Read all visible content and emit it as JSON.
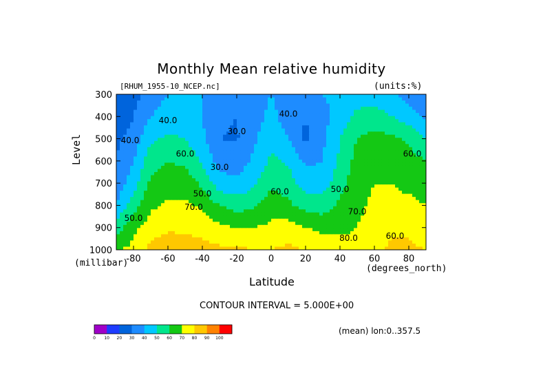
{
  "chart_data": {
    "type": "heatmap",
    "title": "Monthly Mean relative humidity",
    "dataset_label": "[RHUM_1955-10_NCEP.nc]",
    "units_label": "(units:%)",
    "xlabel": "Latitude",
    "x_units": "(degrees_north)",
    "ylabel": "Level",
    "y_units": "(millibar)",
    "xlim": [
      -90,
      90
    ],
    "ylim": [
      1000,
      300
    ],
    "x_ticks": [
      "-80",
      "-60",
      "-40",
      "-20",
      "0",
      "20",
      "40",
      "60",
      "80"
    ],
    "y_ticks": [
      "300",
      "400",
      "500",
      "600",
      "700",
      "800",
      "900",
      "1000"
    ],
    "contour_interval_text": "CONTOUR INTERVAL = 5.000E+00",
    "footer_text": "(mean) lon:0..357.5",
    "contour_labels": [
      "40.0",
      "30.0",
      "40.0",
      "40.0",
      "30.0",
      "60.0",
      "60.0",
      "50.0",
      "60.0",
      "50.0",
      "70.0",
      "70.0",
      "50.0",
      "80.0",
      "60.0"
    ],
    "colorbar": {
      "ticks": [
        "0",
        "10",
        "20",
        "30",
        "40",
        "50",
        "60",
        "70",
        "80",
        "90",
        "100"
      ],
      "colors": [
        "#a000c8",
        "#1e3cff",
        "#0064dc",
        "#1e8cff",
        "#00c8ff",
        "#00e68c",
        "#14c814",
        "#ffff00",
        "#ffc800",
        "#ff8200",
        "#ff0000"
      ]
    },
    "levels": [
      1000,
      900,
      800,
      700,
      600,
      500,
      400,
      300
    ],
    "latitudes": [
      -90,
      -80,
      -70,
      -60,
      -50,
      -40,
      -30,
      -20,
      -10,
      0,
      10,
      20,
      30,
      40,
      50,
      60,
      70,
      80,
      90
    ],
    "values": [
      [
        70,
        72,
        84,
        87,
        86,
        84,
        82,
        82,
        80,
        80,
        82,
        80,
        78,
        77,
        76,
        77,
        82,
        82,
        80
      ],
      [
        55,
        68,
        75,
        78,
        78,
        76,
        72,
        70,
        70,
        72,
        74,
        70,
        67,
        66,
        70,
        74,
        78,
        78,
        74
      ],
      [
        40,
        55,
        68,
        72,
        72,
        68,
        60,
        56,
        58,
        66,
        62,
        56,
        55,
        62,
        68,
        72,
        72,
        72,
        70
      ],
      [
        33,
        46,
        62,
        65,
        65,
        58,
        44,
        42,
        48,
        58,
        55,
        45,
        45,
        56,
        66,
        70,
        70,
        68,
        66
      ],
      [
        30,
        40,
        56,
        60,
        58,
        48,
        36,
        35,
        42,
        52,
        48,
        38,
        40,
        52,
        64,
        68,
        66,
        64,
        60
      ],
      [
        28,
        34,
        48,
        52,
        50,
        42,
        30,
        29,
        38,
        48,
        40,
        28,
        38,
        50,
        60,
        64,
        62,
        58,
        50
      ],
      [
        22,
        30,
        40,
        44,
        44,
        40,
        32,
        30,
        36,
        42,
        36,
        30,
        36,
        45,
        52,
        54,
        50,
        45,
        38
      ],
      [
        20,
        26,
        35,
        40,
        42,
        40,
        38,
        36,
        38,
        40,
        38,
        36,
        40,
        44,
        46,
        46,
        42,
        36,
        30
      ]
    ]
  }
}
